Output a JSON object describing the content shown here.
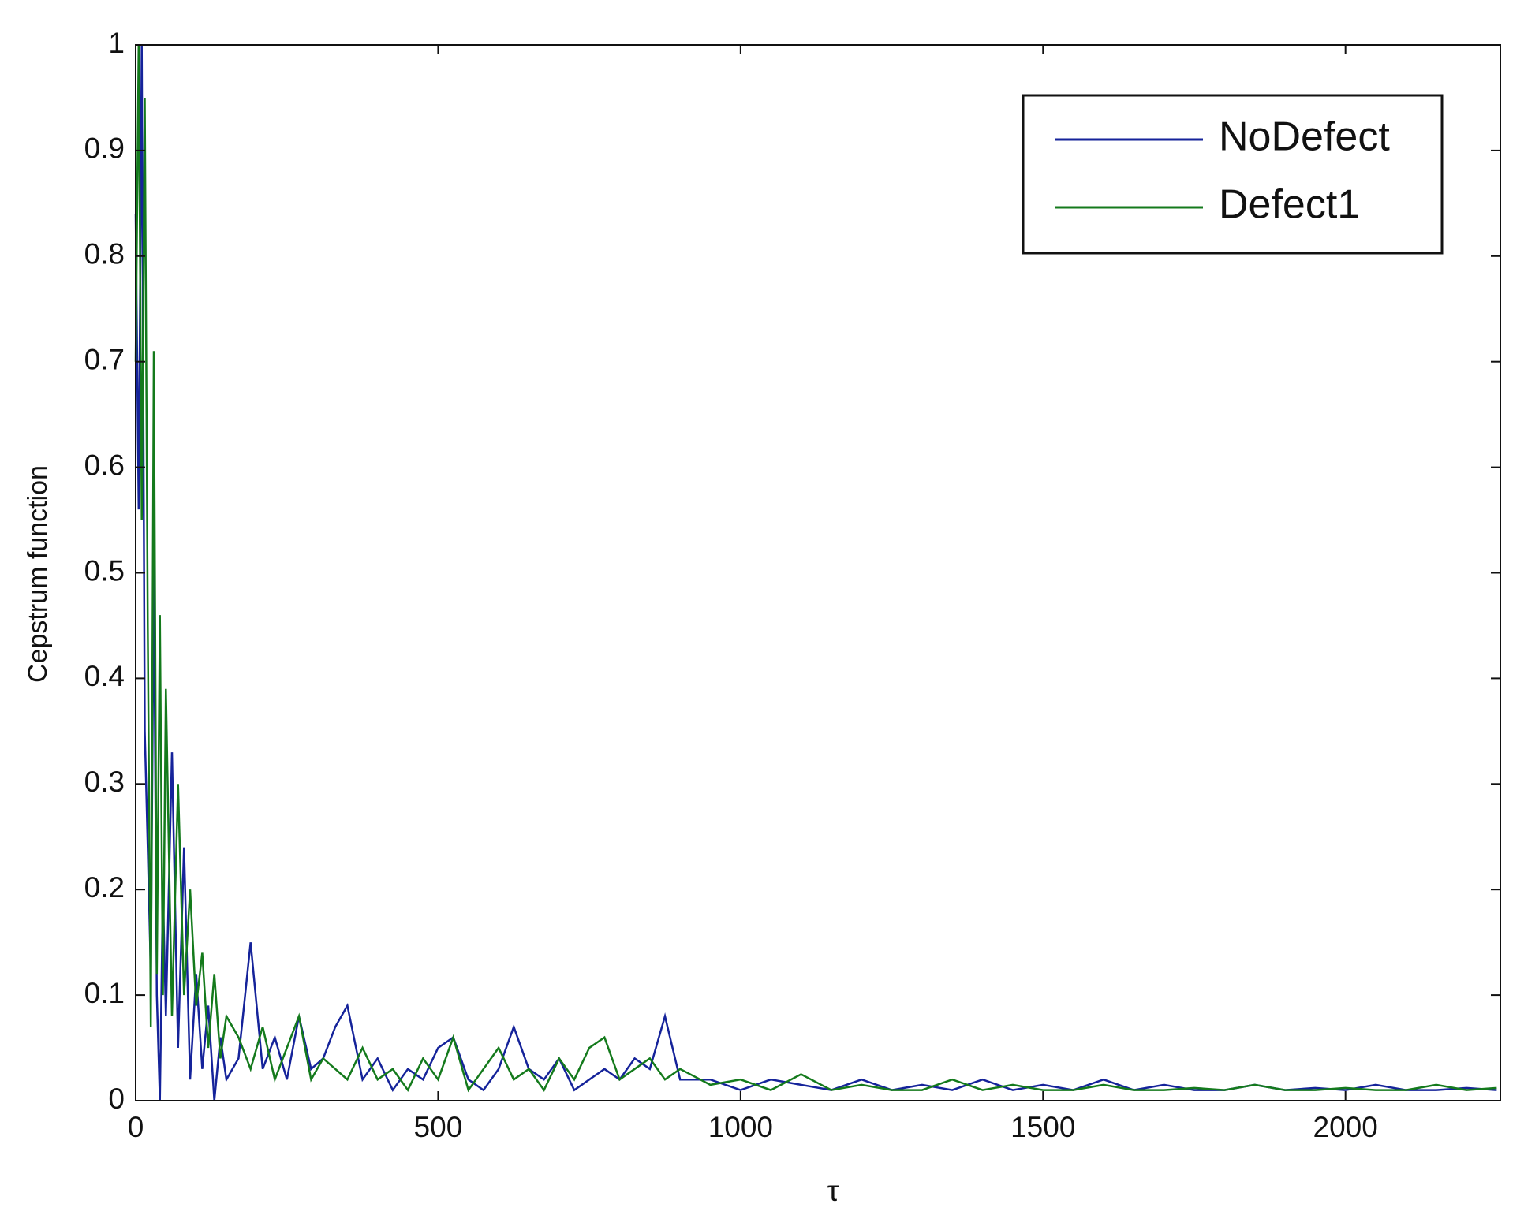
{
  "chart_data": {
    "type": "line",
    "x_label": "τ",
    "y_label": "Cepstrum function",
    "x": [
      0,
      5,
      10,
      15,
      20,
      25,
      30,
      35,
      40,
      45,
      50,
      60,
      70,
      80,
      90,
      100,
      110,
      120,
      130,
      140,
      150,
      170,
      190,
      210,
      230,
      250,
      270,
      290,
      310,
      330,
      350,
      375,
      400,
      425,
      450,
      475,
      500,
      525,
      550,
      575,
      600,
      625,
      650,
      675,
      700,
      725,
      750,
      775,
      800,
      825,
      850,
      875,
      900,
      950,
      1000,
      1050,
      1100,
      1150,
      1200,
      1250,
      1300,
      1350,
      1400,
      1450,
      1500,
      1550,
      1600,
      1650,
      1700,
      1750,
      1800,
      1850,
      1900,
      1950,
      2000,
      2050,
      2100,
      2150,
      2200,
      2250
    ],
    "series": [
      {
        "name": "NoDefect",
        "color": "#15239a",
        "values": [
          0.84,
          0.56,
          1.0,
          0.35,
          0.24,
          0.12,
          0.51,
          0.1,
          0.0,
          0.2,
          0.08,
          0.33,
          0.05,
          0.24,
          0.02,
          0.12,
          0.03,
          0.09,
          0.0,
          0.06,
          0.02,
          0.04,
          0.15,
          0.03,
          0.06,
          0.02,
          0.08,
          0.03,
          0.04,
          0.07,
          0.09,
          0.02,
          0.04,
          0.01,
          0.03,
          0.02,
          0.05,
          0.06,
          0.02,
          0.01,
          0.03,
          0.07,
          0.03,
          0.02,
          0.04,
          0.01,
          0.02,
          0.03,
          0.02,
          0.04,
          0.03,
          0.08,
          0.02,
          0.02,
          0.01,
          0.02,
          0.015,
          0.01,
          0.02,
          0.01,
          0.015,
          0.01,
          0.02,
          0.01,
          0.015,
          0.01,
          0.02,
          0.01,
          0.015,
          0.01,
          0.01,
          0.015,
          0.01,
          0.012,
          0.01,
          0.015,
          0.01,
          0.01,
          0.012,
          0.01
        ]
      },
      {
        "name": "Defect1",
        "color": "#147a1c",
        "values": [
          0.7,
          1.0,
          0.55,
          0.95,
          0.45,
          0.07,
          0.71,
          0.12,
          0.46,
          0.1,
          0.39,
          0.08,
          0.3,
          0.1,
          0.2,
          0.09,
          0.14,
          0.05,
          0.12,
          0.04,
          0.08,
          0.06,
          0.03,
          0.07,
          0.02,
          0.05,
          0.08,
          0.02,
          0.04,
          0.03,
          0.02,
          0.05,
          0.02,
          0.03,
          0.01,
          0.04,
          0.02,
          0.06,
          0.01,
          0.03,
          0.05,
          0.02,
          0.03,
          0.01,
          0.04,
          0.02,
          0.05,
          0.06,
          0.02,
          0.03,
          0.04,
          0.02,
          0.03,
          0.015,
          0.02,
          0.01,
          0.025,
          0.01,
          0.015,
          0.01,
          0.01,
          0.02,
          0.01,
          0.015,
          0.01,
          0.01,
          0.015,
          0.01,
          0.01,
          0.012,
          0.01,
          0.015,
          0.01,
          0.01,
          0.012,
          0.01,
          0.01,
          0.015,
          0.01,
          0.012
        ]
      }
    ],
    "xlim": [
      0,
      2256
    ],
    "ylim": [
      0,
      1
    ],
    "xticks": [
      0,
      500,
      1000,
      1500,
      2000
    ],
    "yticks": [
      0,
      0.1,
      0.2,
      0.3,
      0.4,
      0.5,
      0.6,
      0.7,
      0.8,
      0.9,
      1
    ],
    "legend": "upper right"
  }
}
